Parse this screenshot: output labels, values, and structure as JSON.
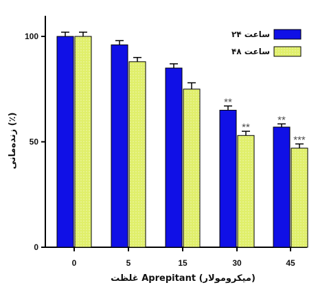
{
  "chart_data": {
    "type": "bar",
    "categories": [
      "0",
      "5",
      "15",
      "30",
      "45"
    ],
    "series": [
      {
        "name": "۲۴ ساعت",
        "color": "#1010e6",
        "pattern": "solid",
        "values": [
          100,
          96,
          85,
          65,
          57
        ],
        "errors": [
          2,
          2,
          2,
          2,
          1.5
        ],
        "significance": [
          "",
          "",
          "",
          "**",
          "**"
        ]
      },
      {
        "name": "۴۸ ساعت",
        "color": "#e0ef6a",
        "pattern": "dotted",
        "values": [
          100,
          88,
          75,
          53,
          47
        ],
        "errors": [
          2,
          2,
          3,
          2,
          2
        ],
        "significance": [
          "",
          "",
          "",
          "**",
          "***"
        ]
      }
    ],
    "xlabel": "غلظت Aprepitant (میکرومولار)",
    "ylabel": "زنده‌مانی (٪)",
    "ylim": [
      0,
      100
    ],
    "yticks": [
      0,
      50,
      100
    ],
    "grid": false,
    "legend_position": "top-right",
    "error_bars": "top-only"
  }
}
